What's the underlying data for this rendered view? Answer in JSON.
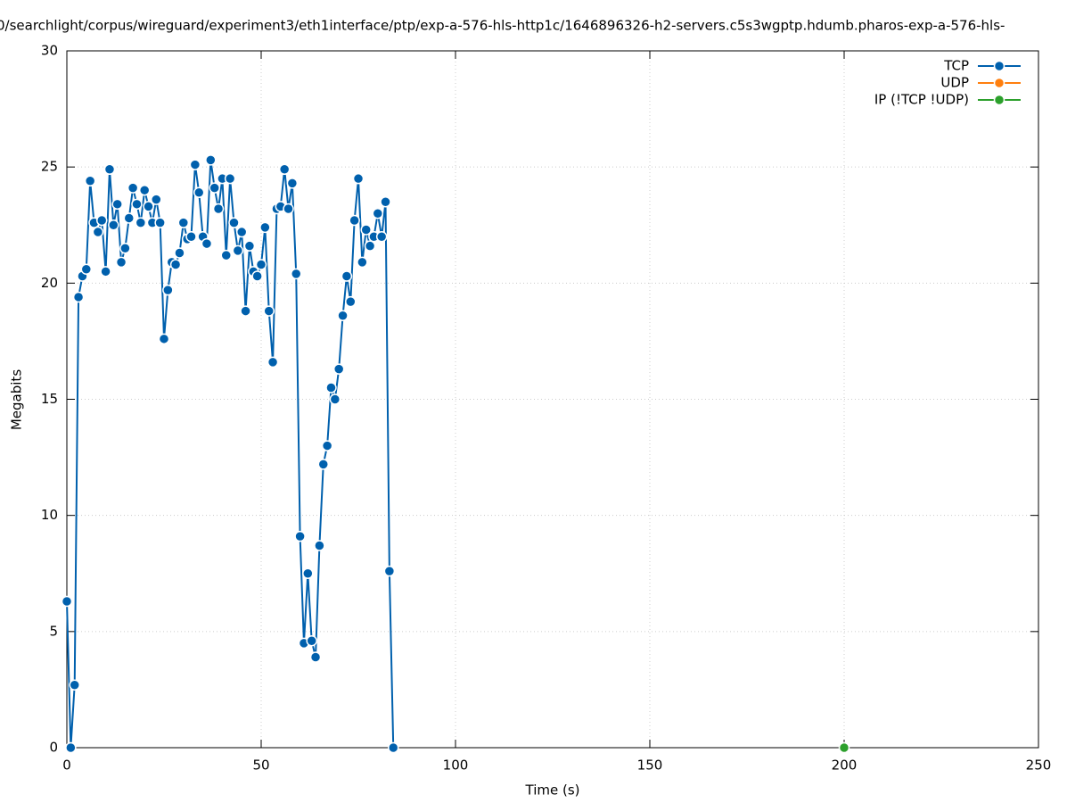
{
  "chart_data": {
    "type": "line",
    "title": "0/searchlight/corpus/wireguard/experiment3/eth1interface/ptp/exp-a-576-hls-http1c/1646896326-h2-servers.c5s3wgptp.hdumb.pharos-exp-a-576-hls-",
    "x_label": "Time (s)",
    "y_label": "Megabits",
    "xlim": [
      0,
      250
    ],
    "ylim": [
      0,
      30
    ],
    "xticks": [
      0,
      50,
      100,
      150,
      200,
      250
    ],
    "yticks": [
      0,
      5,
      10,
      15,
      20,
      25,
      30
    ],
    "grid": true,
    "legend": "top-right",
    "series": [
      {
        "name": "TCP",
        "color": "#0060ad",
        "x": [
          0,
          1,
          2,
          3,
          4,
          5,
          6,
          7,
          8,
          9,
          10,
          11,
          12,
          13,
          14,
          15,
          16,
          17,
          18,
          19,
          20,
          21,
          22,
          23,
          24,
          25,
          26,
          27,
          28,
          29,
          30,
          31,
          32,
          33,
          34,
          35,
          36,
          37,
          38,
          39,
          40,
          41,
          42,
          43,
          44,
          45,
          46,
          47,
          48,
          49,
          50,
          51,
          52,
          53,
          54,
          55,
          56,
          57,
          58,
          59,
          60,
          61,
          62,
          63,
          64,
          65,
          66,
          67,
          68,
          69,
          70,
          71,
          72,
          73,
          74,
          75,
          76,
          77,
          78,
          79,
          80,
          81,
          82,
          83,
          84
        ],
        "values": [
          6.3,
          0,
          2.7,
          19.4,
          20.3,
          20.6,
          24.4,
          22.6,
          22.2,
          22.7,
          20.5,
          24.9,
          22.5,
          23.4,
          20.9,
          21.5,
          22.8,
          24.1,
          23.4,
          22.6,
          24.0,
          23.3,
          22.6,
          23.6,
          22.6,
          17.6,
          19.7,
          20.9,
          20.8,
          21.3,
          22.6,
          21.9,
          22.0,
          25.1,
          23.9,
          22.0,
          21.7,
          25.3,
          24.1,
          23.2,
          24.5,
          21.2,
          24.5,
          22.6,
          21.4,
          22.2,
          18.8,
          21.6,
          20.5,
          20.3,
          20.8,
          22.4,
          18.8,
          16.6,
          23.2,
          23.3,
          24.9,
          23.2,
          24.3,
          20.4,
          9.1,
          4.5,
          7.5,
          4.6,
          3.9,
          8.7,
          12.2,
          13.0,
          15.5,
          15.0,
          16.3,
          18.6,
          20.3,
          19.2,
          22.7,
          24.5,
          20.9,
          22.3,
          21.6,
          22.0,
          23.0,
          22.0,
          23.5,
          7.6,
          0
        ]
      },
      {
        "name": "UDP",
        "color": "#ff7f0e",
        "x": [],
        "values": []
      },
      {
        "name": "IP (!TCP  !UDP)",
        "color": "#2ca02c",
        "x": [
          200
        ],
        "values": [
          0
        ]
      }
    ]
  }
}
